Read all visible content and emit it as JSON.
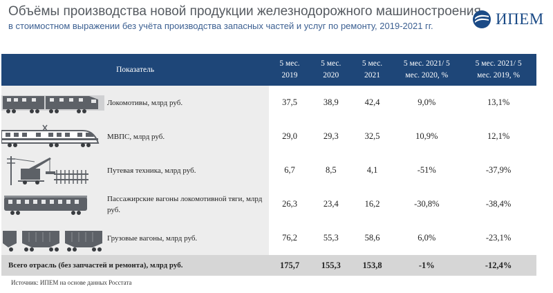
{
  "header": {
    "title": "Объёмы производства новой продукции железнодорожного машиностроения",
    "subtitle": "в стоимостном выражении без учёта производства запасных частей и услуг по ремонту, 2019-2021 гг."
  },
  "logo": {
    "text": "ИПЕМ",
    "icon": "ipem-logo-icon"
  },
  "table": {
    "columns": [
      "Показатель",
      "5 мес. 2019",
      "5 мес. 2020",
      "5 мес. 2021",
      "5 мес. 2021/ 5 мес. 2020, %",
      "5 мес. 2021/ 5 мес. 2019, %"
    ],
    "rows": [
      {
        "icon": "locomotive-icon",
        "name": "Локомотивы, млрд руб.",
        "v2019": "37,5",
        "v2020": "38,9",
        "v2021": "42,4",
        "ch2020": "9,0%",
        "ch2019": "13,1%"
      },
      {
        "icon": "emu-train-icon",
        "name": "МВПС, млрд руб.",
        "v2019": "29,0",
        "v2020": "29,3",
        "v2021": "32,5",
        "ch2020": "10,9%",
        "ch2019": "12,1%"
      },
      {
        "icon": "track-machine-icon",
        "name": "Путевая техника, млрд руб.",
        "v2019": "6,7",
        "v2020": "8,5",
        "v2021": "4,1",
        "ch2020": "-51%",
        "ch2019": "-37,9%"
      },
      {
        "icon": "passenger-car-icon",
        "name": "Пассажирские вагоны локомотивной тяги, млрд руб.",
        "v2019": "26,3",
        "v2020": "23,4",
        "v2021": "16,2",
        "ch2020": "-30,8%",
        "ch2019": "-38,4%"
      },
      {
        "icon": "freight-car-icon",
        "name": "Грузовые вагоны, млрд руб.",
        "v2019": "76,2",
        "v2020": "55,3",
        "v2021": "58,6",
        "ch2020": "6,0%",
        "ch2019": "-23,1%"
      }
    ],
    "total": {
      "name": "Всего отрасль (без запчастей и ремонта), млрд руб.",
      "v2019": "175,7",
      "v2020": "155,3",
      "v2021": "153,8",
      "ch2020": "-1%",
      "ch2019": "-12,4%"
    }
  },
  "footer": {
    "source": "Источник: ИПЕМ на основе данных Росстата"
  },
  "colors": {
    "header_bg": "#1e4678",
    "row_bg": "#ededed",
    "total_bg": "#d6d6d6",
    "title": "#555a60",
    "subtitle": "#3b5f91",
    "logo": "#1a4a86"
  }
}
